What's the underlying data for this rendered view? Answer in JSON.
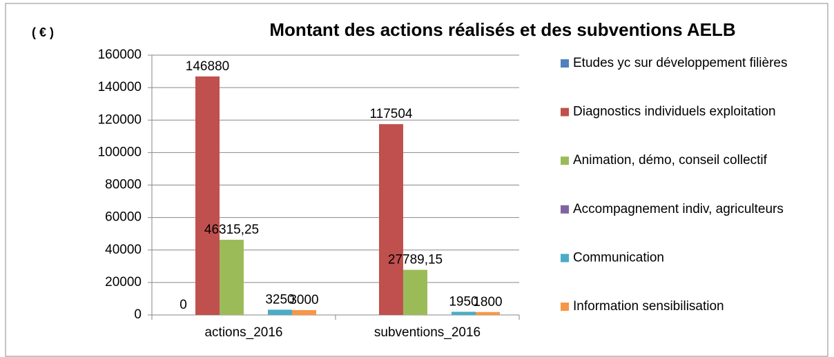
{
  "chart_data": {
    "type": "bar",
    "title": "Montant des actions réalisés et des subventions AELB",
    "y_label": "( € )",
    "categories": [
      "actions_2016",
      "subventions_2016"
    ],
    "series": [
      {
        "name": "Etudes yc sur développement filières",
        "color": "#4f81bd",
        "values": [
          0,
          null
        ],
        "value_labels": [
          "0",
          null
        ]
      },
      {
        "name": "Diagnostics individuels exploitation",
        "color": "#c0504d",
        "values": [
          146880,
          117504
        ],
        "value_labels": [
          "146880",
          "117504"
        ]
      },
      {
        "name": "Animation, démo, conseil collectif",
        "color": "#9bbb59",
        "values": [
          46315.25,
          27789.15
        ],
        "value_labels": [
          "46315,25",
          "27789,15"
        ]
      },
      {
        "name": "Accompagnement indiv, agriculteurs",
        "color": "#8064a2",
        "values": [
          null,
          null
        ],
        "value_labels": [
          null,
          null
        ]
      },
      {
        "name": "Communication",
        "color": "#4bacc6",
        "values": [
          3250,
          1950
        ],
        "value_labels": [
          "3250",
          "1950"
        ]
      },
      {
        "name": "Information sensibilisation",
        "color": "#f79646",
        "values": [
          3000,
          1800
        ],
        "value_labels": [
          "3000",
          "1800"
        ]
      }
    ],
    "ylim": [
      0,
      160000
    ],
    "yticks": [
      0,
      20000,
      40000,
      60000,
      80000,
      100000,
      120000,
      140000,
      160000
    ],
    "grid": true,
    "legend": "right"
  }
}
